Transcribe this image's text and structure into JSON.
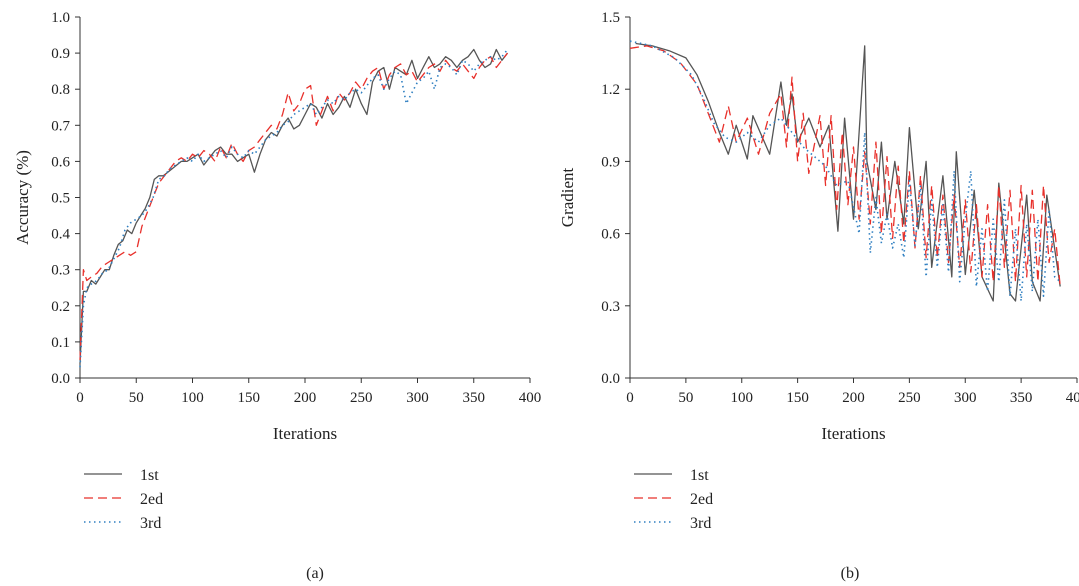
{
  "chart_data": [
    {
      "panel": "(a)",
      "type": "line",
      "xlabel": "Iterations",
      "ylabel": "Accuracy (%)",
      "xlim": [
        0,
        400
      ],
      "ylim": [
        0.0,
        1.0
      ],
      "xticks": [
        "0",
        "50",
        "100",
        "150",
        "200",
        "250",
        "300",
        "350",
        "400"
      ],
      "yticks": [
        "0.0",
        "0.1",
        "0.2",
        "0.3",
        "0.4",
        "0.5",
        "0.6",
        "0.7",
        "0.8",
        "0.9",
        "1.0"
      ],
      "legend_position": "below",
      "series": [
        {
          "name": "1st",
          "style": "solid",
          "color": "#555555",
          "x": [
            0,
            3,
            6,
            10,
            14,
            18,
            22,
            26,
            30,
            34,
            38,
            42,
            46,
            50,
            54,
            58,
            62,
            66,
            70,
            74,
            78,
            82,
            86,
            90,
            95,
            100,
            105,
            110,
            115,
            120,
            125,
            130,
            135,
            140,
            145,
            150,
            155,
            160,
            165,
            170,
            175,
            180,
            185,
            190,
            195,
            200,
            205,
            210,
            215,
            220,
            225,
            230,
            235,
            240,
            245,
            250,
            255,
            260,
            265,
            270,
            275,
            280,
            285,
            290,
            295,
            300,
            305,
            310,
            315,
            320,
            325,
            330,
            335,
            340,
            345,
            350,
            355,
            360,
            365,
            370,
            375,
            380
          ],
          "y": [
            0.04,
            0.24,
            0.24,
            0.27,
            0.26,
            0.28,
            0.3,
            0.3,
            0.34,
            0.37,
            0.38,
            0.41,
            0.4,
            0.43,
            0.45,
            0.47,
            0.5,
            0.55,
            0.56,
            0.56,
            0.57,
            0.58,
            0.59,
            0.6,
            0.6,
            0.61,
            0.62,
            0.59,
            0.61,
            0.63,
            0.64,
            0.62,
            0.62,
            0.6,
            0.61,
            0.62,
            0.57,
            0.62,
            0.66,
            0.68,
            0.67,
            0.7,
            0.72,
            0.69,
            0.7,
            0.73,
            0.76,
            0.75,
            0.72,
            0.76,
            0.73,
            0.75,
            0.78,
            0.75,
            0.8,
            0.76,
            0.73,
            0.82,
            0.85,
            0.86,
            0.8,
            0.86,
            0.85,
            0.84,
            0.88,
            0.83,
            0.86,
            0.89,
            0.86,
            0.87,
            0.89,
            0.88,
            0.86,
            0.88,
            0.89,
            0.91,
            0.88,
            0.86,
            0.87,
            0.91,
            0.88,
            0.9
          ]
        },
        {
          "name": "2ed",
          "style": "dashed",
          "color": "#e8302b",
          "x": [
            0,
            3,
            6,
            10,
            15,
            20,
            25,
            30,
            35,
            40,
            45,
            50,
            55,
            60,
            65,
            70,
            75,
            80,
            85,
            90,
            95,
            100,
            105,
            110,
            115,
            120,
            125,
            130,
            135,
            140,
            145,
            150,
            155,
            160,
            165,
            170,
            175,
            180,
            185,
            190,
            195,
            200,
            205,
            210,
            215,
            220,
            225,
            230,
            235,
            240,
            245,
            250,
            255,
            260,
            265,
            270,
            275,
            280,
            285,
            290,
            295,
            300,
            305,
            310,
            315,
            320,
            325,
            330,
            335,
            340,
            345,
            350,
            355,
            360,
            365,
            370,
            375,
            380
          ],
          "y": [
            0.05,
            0.3,
            0.27,
            0.28,
            0.29,
            0.31,
            0.32,
            0.33,
            0.34,
            0.35,
            0.34,
            0.35,
            0.42,
            0.46,
            0.5,
            0.54,
            0.56,
            0.58,
            0.6,
            0.61,
            0.6,
            0.62,
            0.61,
            0.63,
            0.62,
            0.6,
            0.64,
            0.61,
            0.65,
            0.62,
            0.6,
            0.63,
            0.64,
            0.66,
            0.68,
            0.7,
            0.69,
            0.73,
            0.79,
            0.74,
            0.76,
            0.8,
            0.81,
            0.7,
            0.74,
            0.78,
            0.74,
            0.79,
            0.77,
            0.79,
            0.82,
            0.8,
            0.83,
            0.85,
            0.86,
            0.8,
            0.84,
            0.86,
            0.87,
            0.84,
            0.85,
            0.82,
            0.84,
            0.86,
            0.87,
            0.85,
            0.88,
            0.86,
            0.85,
            0.87,
            0.85,
            0.83,
            0.86,
            0.88,
            0.89,
            0.86,
            0.88,
            0.9
          ]
        },
        {
          "name": "3rd",
          "style": "dotted",
          "color": "#2f7fc1",
          "x": [
            0,
            3,
            6,
            10,
            15,
            20,
            25,
            30,
            35,
            40,
            45,
            50,
            55,
            60,
            65,
            70,
            75,
            80,
            85,
            90,
            95,
            100,
            105,
            110,
            115,
            120,
            125,
            130,
            135,
            140,
            145,
            150,
            155,
            160,
            165,
            170,
            175,
            180,
            185,
            190,
            195,
            200,
            205,
            210,
            215,
            220,
            225,
            230,
            235,
            240,
            245,
            250,
            255,
            260,
            265,
            270,
            275,
            280,
            285,
            290,
            295,
            300,
            305,
            310,
            315,
            320,
            325,
            330,
            335,
            340,
            345,
            350,
            355,
            360,
            365,
            370,
            375,
            380
          ],
          "y": [
            0.03,
            0.2,
            0.25,
            0.26,
            0.27,
            0.29,
            0.3,
            0.33,
            0.36,
            0.41,
            0.43,
            0.44,
            0.45,
            0.47,
            0.5,
            0.55,
            0.56,
            0.58,
            0.59,
            0.6,
            0.61,
            0.6,
            0.62,
            0.6,
            0.61,
            0.62,
            0.63,
            0.61,
            0.64,
            0.62,
            0.61,
            0.63,
            0.62,
            0.64,
            0.66,
            0.67,
            0.68,
            0.7,
            0.71,
            0.73,
            0.74,
            0.75,
            0.76,
            0.73,
            0.75,
            0.77,
            0.76,
            0.78,
            0.77,
            0.79,
            0.8,
            0.79,
            0.81,
            0.83,
            0.84,
            0.8,
            0.83,
            0.85,
            0.84,
            0.76,
            0.79,
            0.82,
            0.83,
            0.85,
            0.8,
            0.86,
            0.87,
            0.86,
            0.84,
            0.88,
            0.87,
            0.85,
            0.87,
            0.88,
            0.89,
            0.88,
            0.89,
            0.91
          ]
        }
      ]
    },
    {
      "panel": "(b)",
      "type": "line",
      "xlabel": "Iterations",
      "ylabel": "Gradient",
      "xlim": [
        0,
        400
      ],
      "ylim": [
        0.0,
        1.5
      ],
      "xticks": [
        "0",
        "50",
        "100",
        "150",
        "200",
        "250",
        "300",
        "350",
        "400"
      ],
      "yticks": [
        "0.0",
        "0.3",
        "0.6",
        "0.9",
        "1.2",
        "1.5"
      ],
      "legend_position": "below",
      "series": [
        {
          "name": "1st",
          "style": "solid",
          "color": "#555555",
          "x": [
            5,
            20,
            35,
            50,
            60,
            70,
            80,
            88,
            95,
            105,
            110,
            125,
            135,
            140,
            145,
            150,
            160,
            170,
            178,
            186,
            192,
            200,
            210,
            212,
            220,
            225,
            230,
            237,
            245,
            250,
            258,
            265,
            270,
            280,
            288,
            292,
            300,
            308,
            315,
            325,
            330,
            340,
            345,
            355,
            360,
            367,
            373,
            385
          ],
          "y": [
            1.39,
            1.38,
            1.36,
            1.33,
            1.26,
            1.15,
            1.02,
            0.93,
            1.05,
            0.91,
            1.09,
            0.93,
            1.23,
            1.05,
            1.18,
            0.98,
            1.08,
            0.96,
            1.05,
            0.61,
            1.08,
            0.66,
            1.38,
            0.9,
            0.7,
            0.98,
            0.66,
            0.9,
            0.64,
            1.04,
            0.62,
            0.9,
            0.46,
            0.84,
            0.42,
            0.94,
            0.43,
            0.78,
            0.42,
            0.32,
            0.81,
            0.35,
            0.32,
            0.76,
            0.4,
            0.32,
            0.76,
            0.38
          ]
        },
        {
          "name": "2ed",
          "style": "dashed",
          "color": "#e8302b",
          "x": [
            0,
            15,
            30,
            45,
            60,
            70,
            80,
            88,
            95,
            105,
            115,
            125,
            135,
            140,
            145,
            150,
            155,
            160,
            170,
            175,
            180,
            185,
            190,
            195,
            200,
            205,
            210,
            215,
            220,
            225,
            230,
            235,
            240,
            245,
            250,
            255,
            260,
            265,
            270,
            275,
            280,
            285,
            290,
            295,
            300,
            305,
            310,
            315,
            320,
            325,
            330,
            335,
            340,
            345,
            350,
            355,
            360,
            365,
            370,
            375,
            380,
            385
          ],
          "y": [
            1.37,
            1.38,
            1.36,
            1.31,
            1.22,
            1.1,
            0.98,
            1.13,
            0.98,
            1.08,
            0.93,
            1.1,
            1.18,
            0.96,
            1.25,
            0.9,
            1.1,
            0.85,
            1.09,
            0.8,
            1.09,
            0.7,
            1.02,
            0.72,
            0.96,
            0.66,
            0.94,
            0.64,
            0.98,
            0.6,
            0.92,
            0.58,
            0.88,
            0.56,
            0.86,
            0.54,
            0.84,
            0.5,
            0.8,
            0.5,
            0.76,
            0.48,
            0.76,
            0.46,
            0.74,
            0.44,
            0.72,
            0.42,
            0.72,
            0.4,
            0.8,
            0.46,
            0.78,
            0.4,
            0.8,
            0.42,
            0.78,
            0.4,
            0.8,
            0.48,
            0.62,
            0.38
          ]
        },
        {
          "name": "3rd",
          "style": "dotted",
          "color": "#2f7fc1",
          "x": [
            0,
            20,
            40,
            55,
            65,
            75,
            85,
            95,
            105,
            115,
            125,
            135,
            145,
            155,
            165,
            175,
            185,
            195,
            205,
            210,
            215,
            220,
            225,
            230,
            235,
            240,
            245,
            250,
            255,
            260,
            265,
            270,
            275,
            280,
            285,
            290,
            295,
            300,
            305,
            310,
            315,
            320,
            325,
            330,
            335,
            340,
            345,
            350,
            355,
            360,
            365,
            370,
            375,
            380,
            385
          ],
          "y": [
            1.4,
            1.38,
            1.33,
            1.26,
            1.17,
            1.06,
            1.0,
            0.98,
            1.02,
            0.98,
            1.05,
            1.08,
            1.02,
            0.96,
            0.92,
            0.88,
            0.8,
            0.82,
            0.6,
            1.02,
            0.52,
            0.75,
            0.56,
            0.68,
            0.54,
            0.64,
            0.5,
            0.82,
            0.55,
            0.8,
            0.42,
            0.74,
            0.46,
            0.72,
            0.44,
            0.86,
            0.4,
            0.66,
            0.86,
            0.38,
            0.62,
            0.36,
            0.66,
            0.4,
            0.74,
            0.34,
            0.62,
            0.32,
            0.64,
            0.36,
            0.66,
            0.34,
            0.7,
            0.42,
            0.4
          ]
        }
      ]
    }
  ]
}
